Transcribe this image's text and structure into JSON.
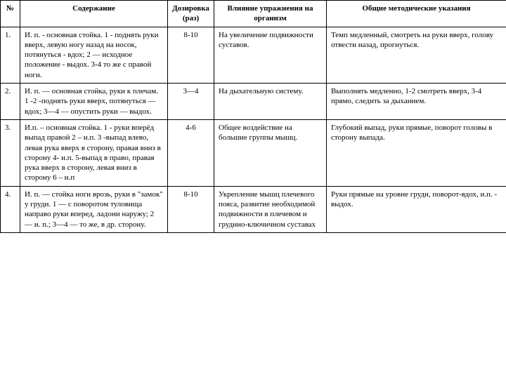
{
  "headers": {
    "num": "№",
    "content": "Содержание",
    "dose": "Дозировка (раз)",
    "effect": "Влияние упражнения на организм",
    "guide": "Общие  методические  указания"
  },
  "rows": [
    {
      "num": "1.",
      "content": "И. п.  - основная   стойка.  1 - поднять    руки вверх, левую ногу назад на носок, потянуться - вдох; 2 — исходное положение - выдох. 3-4 то    же с правой ноги.",
      "dose": "8-10",
      "effect": "На увеличение подвижности суставов.",
      "guide": "Темп медленный, смотреть на руки вверх, голову отвести назад, прогнуться."
    },
    {
      "num": "2.",
      "content": "И. п. — основная стойка,   руки   к плечам.   1 -2 -поднять руки вверх, потянуться  —  вдох;  3—4   — опустить руки — выдох.",
      "dose": "3—4",
      "effect": "На  дыхательную систему.",
      "guide": " Выполнять медленно, 1-2 смотреть вверх, 3-4 прямо, следить за дыханием."
    },
    {
      "num": "3.",
      "content": "И.п. – основная стойка.\n1 - руки вперёд выпад правой\n2 – и.п.\n3 -выпад влево, левая рука вверх в сторону, правая вниз в сторону\n4- и.п.\n5-выпад в право, правая рука вверх в сторону, левая вниз в сторону\n6 – и.п",
      "dose": "4-6",
      "effect": "Общее воздействие на большие группы мышц.",
      "guide": "Глубокий выпад, руки прямые, поворот головы в сторону выпада."
    },
    {
      "num": "4.",
      "content": "И. п. — стойка ноги врозь, руки в \"замок\" у груди.\n1               — с поворотом туловища направо\nруки вперед, ладони наружу;\n2                   — и. п.;\n3—4 — то же, в др. сторону.",
      "dose": "8-10",
      "effect": "Укрепление мышц плечевого пояса, развитие необходимой подвижности в плечевом и грудино-ключичном суставах",
      "guide": "Руки прямые на уровне груди, поворот-вдох, и.п. - выдох."
    }
  ]
}
